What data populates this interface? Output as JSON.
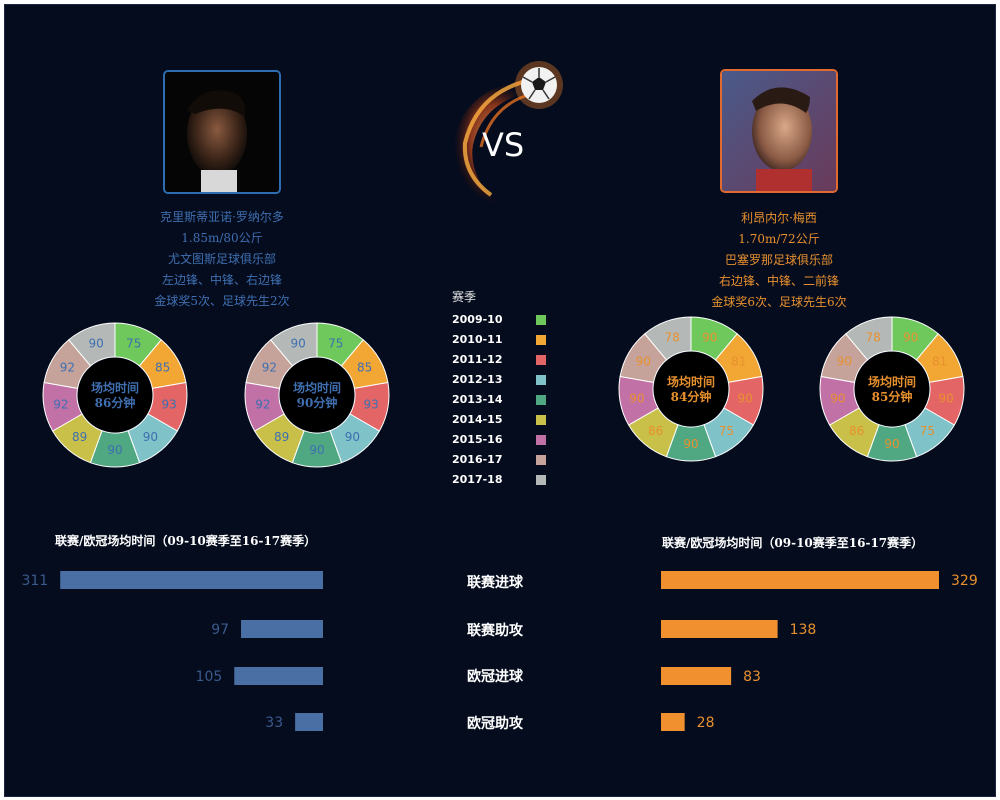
{
  "center": {
    "vs_text": "VS"
  },
  "players": [
    {
      "id": "ronaldo",
      "name": "克里斯蒂亚诺·罗纳尔多",
      "height_weight": "1.85m/80公斤",
      "club": "尤文图斯足球俱乐部",
      "positions": "左边锋、中锋、右边锋",
      "awards": "金球奖5次、足球先生2次",
      "color": "#3f6fb0"
    },
    {
      "id": "messi",
      "name": "利昂内尔·梅西",
      "height_weight": "1.70m/72公斤",
      "club": "巴塞罗那足球俱乐部",
      "positions": "右边锋、中锋、二前锋",
      "awards": "金球奖6次、足球先生6次",
      "color": "#e8902e"
    }
  ],
  "legend": {
    "title": "赛季",
    "items": [
      {
        "label": "2009-10",
        "color": "#6fc85c"
      },
      {
        "label": "2010-11",
        "color": "#f2a734"
      },
      {
        "label": "2011-12",
        "color": "#e46565"
      },
      {
        "label": "2012-13",
        "color": "#7fc2c8"
      },
      {
        "label": "2013-14",
        "color": "#4fa882"
      },
      {
        "label": "2014-15",
        "color": "#c8c048"
      },
      {
        "label": "2015-16",
        "color": "#c271a6"
      },
      {
        "label": "2016-17",
        "color": "#c6a39a"
      },
      {
        "label": "2017-18",
        "color": "#b4b9b8"
      }
    ]
  },
  "chart_data": [
    {
      "type": "pie",
      "player": "克里斯蒂亚诺·罗纳尔多",
      "center_label": [
        "场均时间",
        "86分钟"
      ],
      "categories": [
        "2009-10",
        "2010-11",
        "2011-12",
        "2012-13",
        "2013-14",
        "2014-15",
        "2015-16",
        "2016-17",
        "2017-18"
      ],
      "values": [
        75,
        85,
        93,
        90,
        90,
        89,
        92,
        92,
        90
      ]
    },
    {
      "type": "pie",
      "player": "克里斯蒂亚诺·罗纳尔多",
      "center_label": [
        "场均时间",
        "90分钟"
      ],
      "categories": [
        "2009-10",
        "2010-11",
        "2011-12",
        "2012-13",
        "2013-14",
        "2014-15",
        "2015-16",
        "2016-17",
        "2017-18"
      ],
      "values": [
        75,
        85,
        93,
        90,
        90,
        89,
        92,
        92,
        90
      ]
    },
    {
      "type": "pie",
      "player": "利昂内尔·梅西",
      "center_label": [
        "场均时间",
        "84分钟"
      ],
      "categories": [
        "2009-10",
        "2010-11",
        "2011-12",
        "2012-13",
        "2013-14",
        "2014-15",
        "2015-16",
        "2016-17",
        "2017-18"
      ],
      "values": [
        90,
        81,
        90,
        75,
        90,
        86,
        90,
        90,
        78
      ]
    },
    {
      "type": "pie",
      "player": "利昂内尔·梅西",
      "center_label": [
        "场均时间",
        "85分钟"
      ],
      "categories": [
        "2009-10",
        "2010-11",
        "2011-12",
        "2012-13",
        "2013-14",
        "2014-15",
        "2015-16",
        "2016-17",
        "2017-18"
      ],
      "values": [
        90,
        81,
        90,
        75,
        90,
        86,
        90,
        90,
        78
      ]
    },
    {
      "type": "bar",
      "player": "克里斯蒂亚诺·罗纳尔多",
      "title": "联赛/欧冠场均时间（09-10赛季至16-17赛季）",
      "categories": [
        "联赛进球",
        "联赛助攻",
        "欧冠进球",
        "欧冠助攻"
      ],
      "values": [
        311,
        97,
        105,
        33
      ],
      "color": "#4a6fa5",
      "label_color": "#3a5a8c"
    },
    {
      "type": "bar",
      "player": "利昂内尔·梅西",
      "title": "联赛/欧冠场均时间（09-10赛季至16-17赛季）",
      "categories": [
        "联赛进球",
        "联赛助攻",
        "欧冠进球",
        "欧冠助攻"
      ],
      "values": [
        329,
        138,
        83,
        28
      ],
      "color": "#f0902e",
      "label_color": "#e8902e"
    }
  ]
}
